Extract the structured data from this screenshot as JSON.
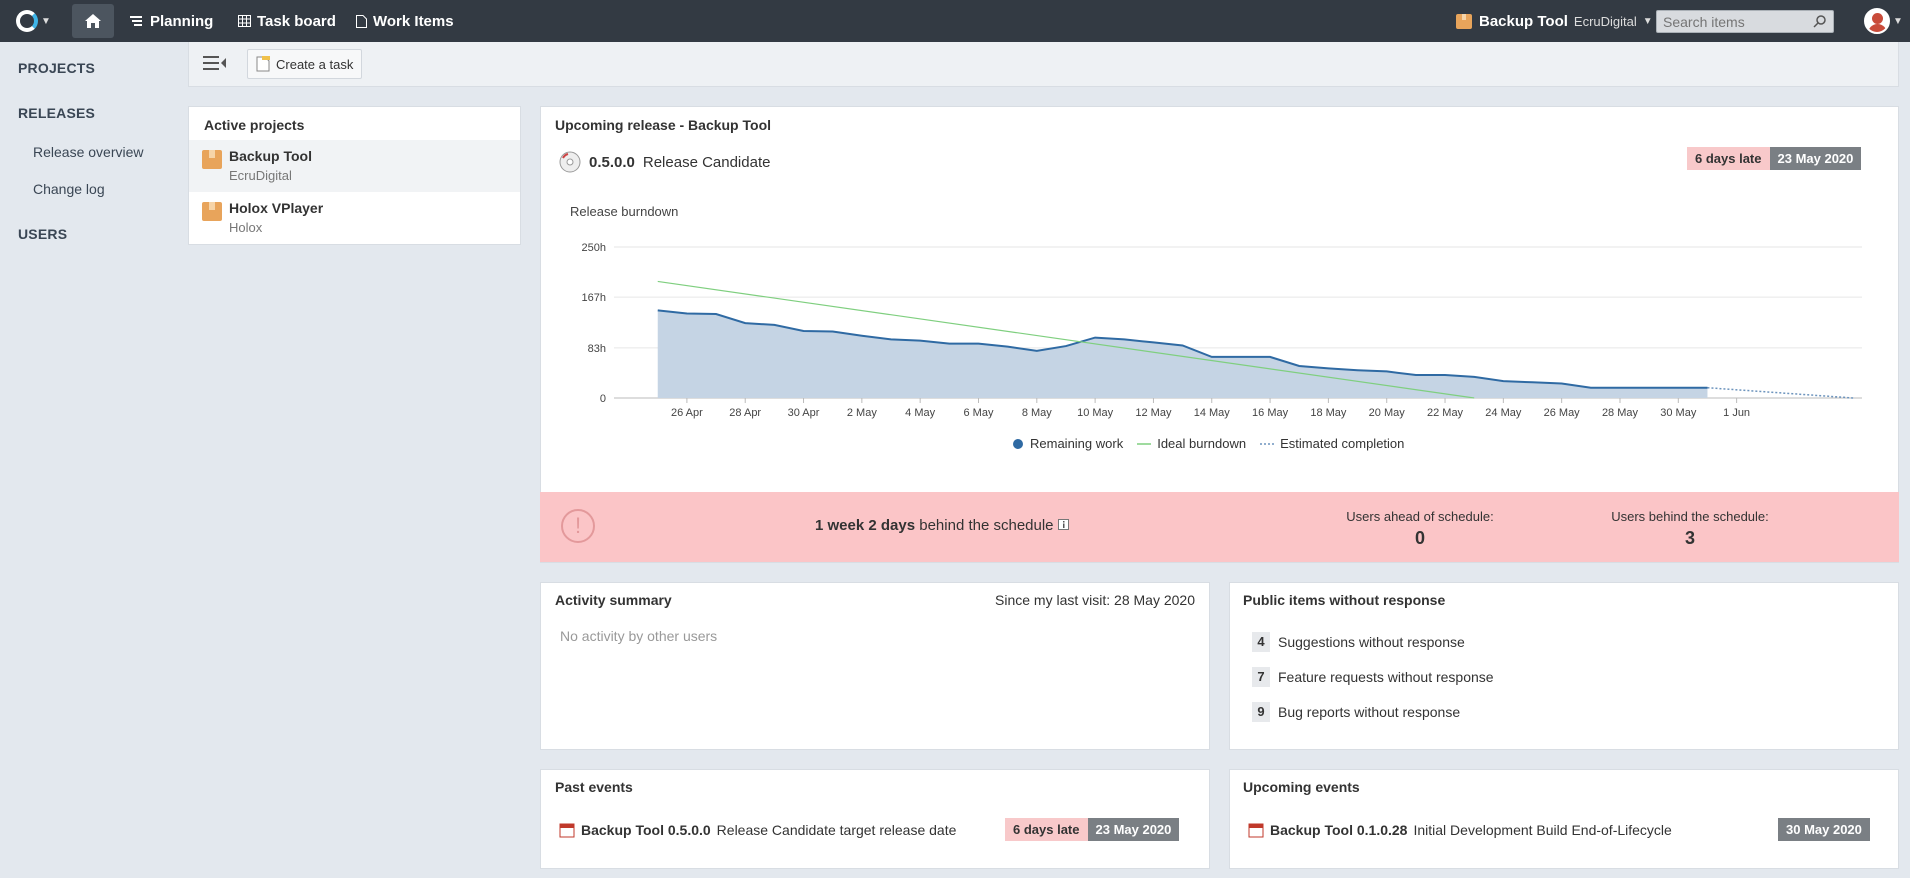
{
  "topbar": {
    "nav": [
      {
        "label": "Planning"
      },
      {
        "label": "Task board"
      },
      {
        "label": "Work Items"
      }
    ],
    "project_switch": {
      "name": "Backup Tool",
      "org": "EcruDigital"
    },
    "search_placeholder": "Search items"
  },
  "sidebar": {
    "projects": "PROJECTS",
    "releases": "RELEASES",
    "release_overview": "Release overview",
    "change_log": "Change log",
    "users": "USERS"
  },
  "toolbar": {
    "create_task": "Create a task"
  },
  "active_projects": {
    "title": "Active projects",
    "items": [
      {
        "name": "Backup Tool",
        "org": "EcruDigital"
      },
      {
        "name": "Holox VPlayer",
        "org": "Holox"
      }
    ]
  },
  "upcoming_release": {
    "title": "Upcoming release - Backup Tool",
    "version": "0.5.0.0",
    "label": "Release Candidate",
    "late": "6 days late",
    "date": "23 May 2020"
  },
  "chart_data": {
    "type": "area",
    "title": "Release burndown",
    "y_ticks": [
      "250h",
      "167h",
      "83h",
      "0"
    ],
    "ylim": [
      0,
      250
    ],
    "x_labels": [
      "26 Apr",
      "28 Apr",
      "30 Apr",
      "2 May",
      "4 May",
      "6 May",
      "8 May",
      "10 May",
      "12 May",
      "14 May",
      "16 May",
      "18 May",
      "20 May",
      "22 May",
      "24 May",
      "26 May",
      "28 May",
      "30 May",
      "1 Jun"
    ],
    "grid": true,
    "legend": "bottom",
    "series": [
      {
        "name": "Remaining work",
        "color": "#2f6aa3",
        "x": [
          0,
          1,
          2,
          3,
          4,
          5,
          6,
          7,
          8,
          9,
          10,
          11,
          12,
          13,
          14,
          15,
          16,
          17,
          18,
          19,
          20,
          21,
          22,
          23,
          24,
          25,
          26,
          27,
          28,
          29,
          30,
          31,
          32,
          33,
          34,
          35,
          36
        ],
        "values": [
          145,
          140,
          139,
          124,
          121,
          111,
          110,
          103,
          97,
          95,
          90,
          90,
          85,
          78,
          86,
          100,
          97,
          92,
          87,
          68,
          68,
          68,
          53,
          49,
          46,
          44,
          38,
          38,
          35,
          28,
          26,
          24,
          17,
          17,
          17,
          17,
          17
        ]
      },
      {
        "name": "Ideal burndown",
        "color": "#7fcf7f",
        "x": [
          0,
          28
        ],
        "values": [
          193,
          0
        ]
      },
      {
        "name": "Estimated completion",
        "color": "#6d94bd",
        "x": [
          36,
          41
        ],
        "values": [
          17,
          0
        ]
      }
    ]
  },
  "schedule": {
    "status_bold": "1 week 2 days",
    "status_rest": "behind the schedule",
    "ahead_label": "Users ahead of schedule:",
    "ahead_value": "0",
    "behind_label": "Users behind the schedule:",
    "behind_value": "3"
  },
  "activity": {
    "title": "Activity summary",
    "since": "Since my last visit: 28 May 2020",
    "empty": "No activity by other users"
  },
  "public_items": {
    "title": "Public items without response",
    "rows": [
      {
        "count": "4",
        "label": "Suggestions without response"
      },
      {
        "count": "7",
        "label": "Feature requests without response"
      },
      {
        "count": "9",
        "label": "Bug reports without response"
      }
    ]
  },
  "past_events": {
    "title": "Past events",
    "bold": "Backup Tool 0.5.0.0",
    "rest": "Release Candidate target release date",
    "late": "6 days late",
    "date": "23 May 2020"
  },
  "upcoming_events": {
    "title": "Upcoming events",
    "bold": "Backup Tool 0.1.0.28",
    "rest": "Initial Development Build End-of-Lifecycle",
    "date": "30 May 2020"
  }
}
